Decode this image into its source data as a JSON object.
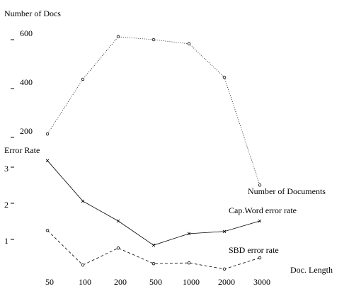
{
  "chart_data": {
    "type": "line",
    "categories": [
      "50",
      "100",
      "200",
      "500",
      "1000",
      "2000",
      "3000"
    ],
    "xlabel": "Doc. Length",
    "panels": [
      {
        "ylabel": "Number of Docs",
        "ylim": [
          0,
          700
        ],
        "yticks": [
          200,
          400,
          600
        ],
        "series": [
          {
            "name": "Number of Documents",
            "color": "#000000",
            "marker": "o",
            "dash": "dotted",
            "values": [
              214,
              438,
              612,
              600,
              583,
              446,
              5
            ]
          }
        ]
      },
      {
        "ylabel": "Error Rate",
        "ylim": [
          0,
          3.5
        ],
        "yticks": [
          1,
          2,
          3
        ],
        "series": [
          {
            "name": "Cap.Word error rate",
            "color": "#000000",
            "marker": "x",
            "dash": "solid",
            "values": [
              3.18,
              2.06,
              1.51,
              0.84,
              1.16,
              1.22,
              1.51
            ]
          },
          {
            "name": "SBD error rate",
            "color": "#000000",
            "marker": "o",
            "dash": "dashed",
            "values": [
              1.25,
              0.29,
              0.76,
              0.33,
              0.35,
              0.18,
              0.49
            ]
          }
        ]
      }
    ]
  }
}
